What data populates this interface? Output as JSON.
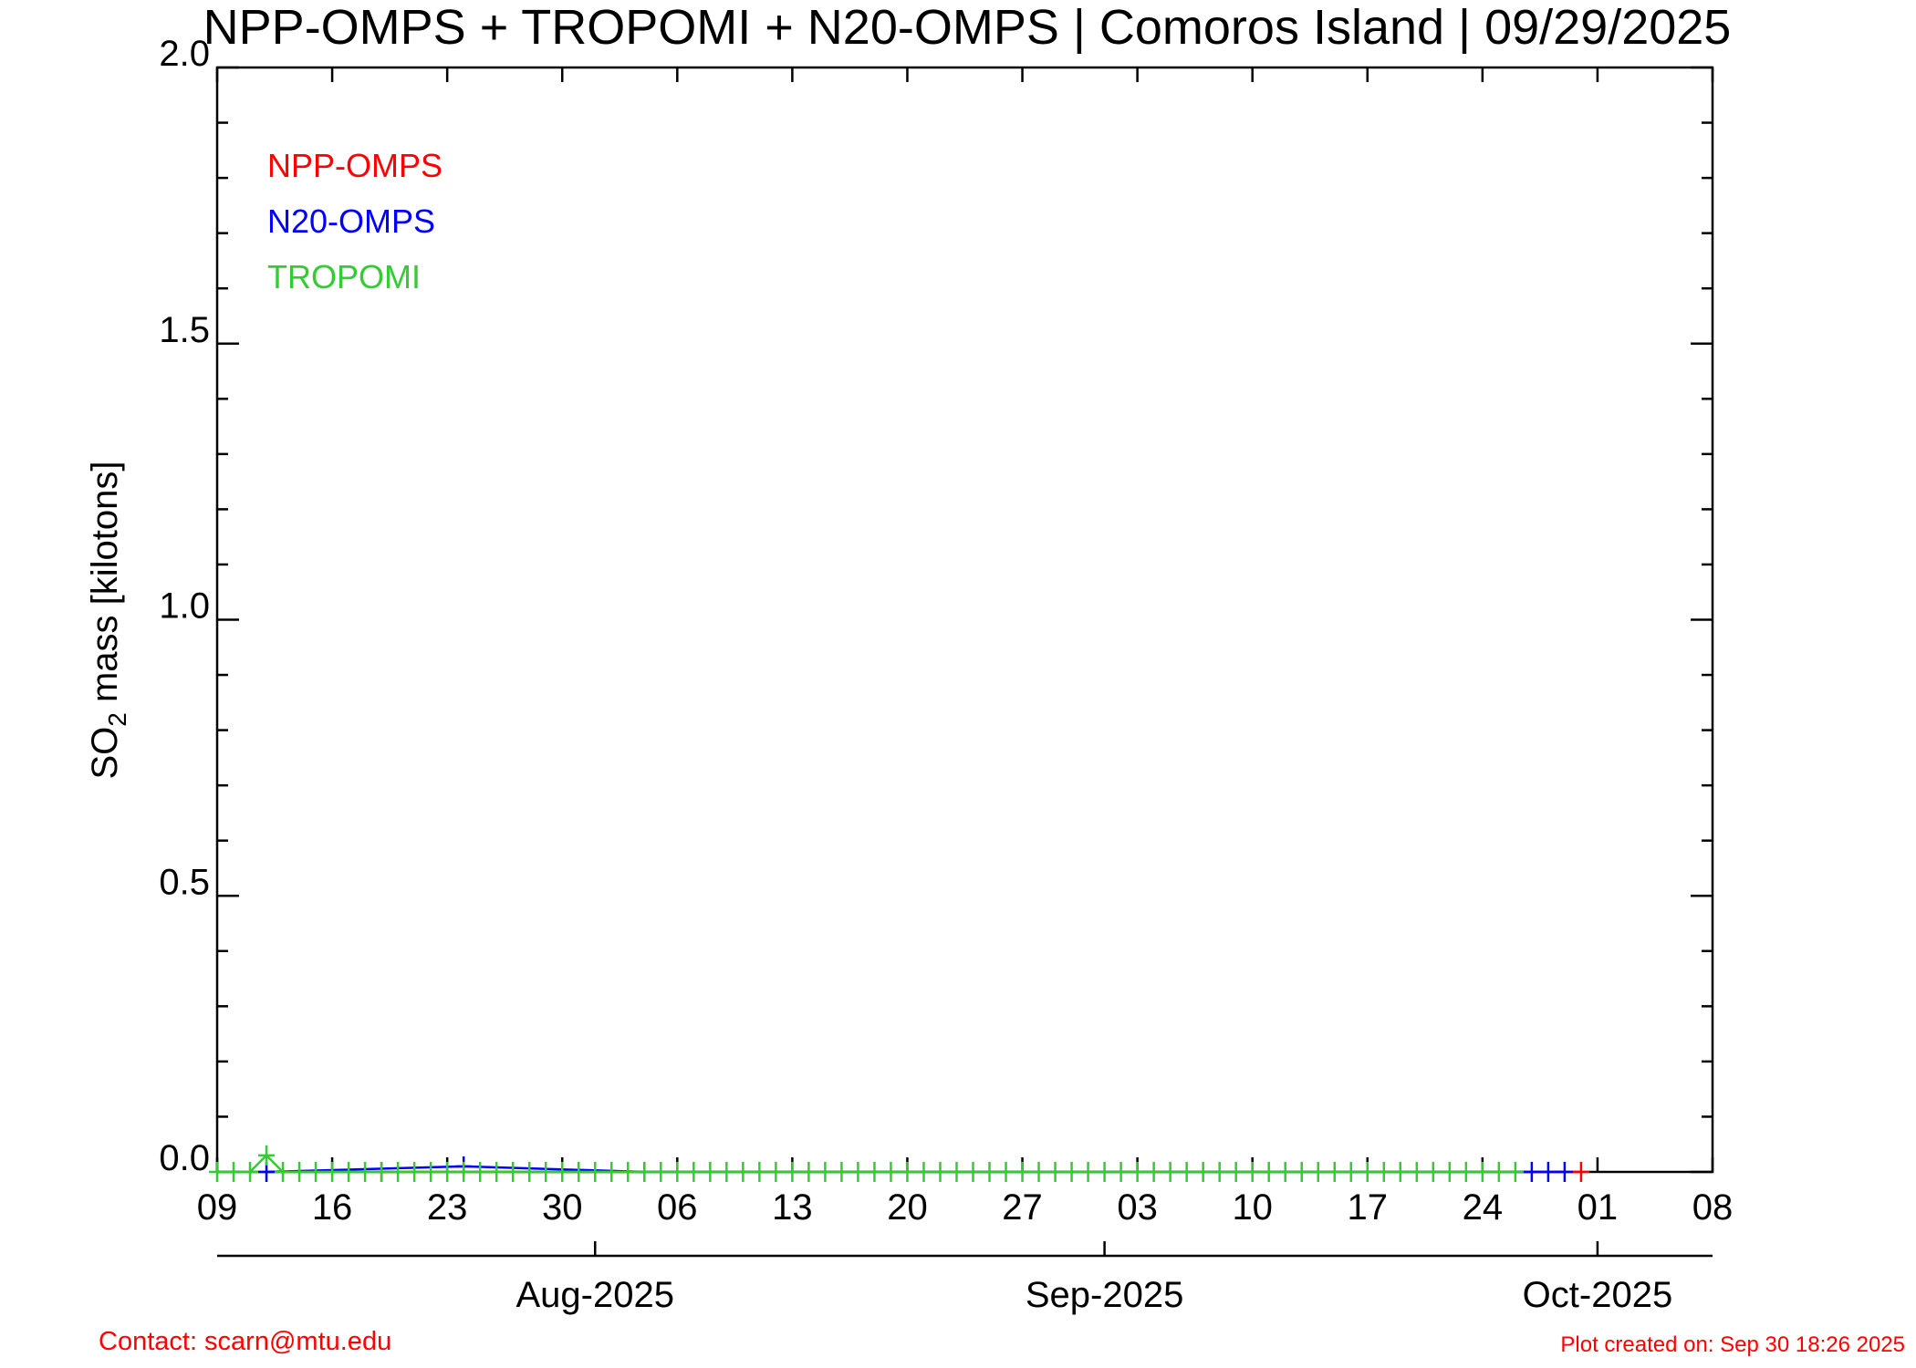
{
  "chart_data": {
    "type": "line",
    "title": "NPP-OMPS + TROPOMI + N20-OMPS | Comoros Island | 09/29/2025",
    "ylabel": [
      "SO",
      "2",
      " mass [kilotons]"
    ],
    "ylim": [
      0,
      2.0
    ],
    "yticks": [
      {
        "value": 0,
        "label": "0.0"
      },
      {
        "value": 0.5,
        "label": "0.5"
      },
      {
        "value": 1.0,
        "label": "1.0"
      },
      {
        "value": 1.5,
        "label": "1.5"
      },
      {
        "value": 2.0,
        "label": "2.0"
      }
    ],
    "yminorticks": [
      0.1,
      0.2,
      0.3,
      0.4,
      0.6,
      0.7,
      0.8,
      0.9,
      1.1,
      1.2,
      1.3,
      1.4,
      1.6,
      1.7,
      1.8,
      1.9
    ],
    "xlim": [
      "2025-07-09",
      "2025-10-08"
    ],
    "xticks": [
      {
        "value": "2025-07-09",
        "label": "09"
      },
      {
        "value": "2025-07-16",
        "label": "16"
      },
      {
        "value": "2025-07-23",
        "label": "23"
      },
      {
        "value": "2025-07-30",
        "label": "30"
      },
      {
        "value": "2025-08-06",
        "label": "06"
      },
      {
        "value": "2025-08-13",
        "label": "13"
      },
      {
        "value": "2025-08-20",
        "label": "20"
      },
      {
        "value": "2025-08-27",
        "label": "27"
      },
      {
        "value": "2025-09-03",
        "label": "03"
      },
      {
        "value": "2025-09-10",
        "label": "10"
      },
      {
        "value": "2025-09-17",
        "label": "17"
      },
      {
        "value": "2025-09-24",
        "label": "24"
      },
      {
        "value": "2025-10-01",
        "label": "01"
      },
      {
        "value": "2025-10-08",
        "label": "08"
      }
    ],
    "monthticks": [
      {
        "value": "2025-08-01",
        "label": "Aug-2025"
      },
      {
        "value": "2025-09-01",
        "label": "Sep-2025"
      },
      {
        "value": "2025-10-01",
        "label": "Oct-2025"
      }
    ],
    "series": [
      {
        "name": "NPP-OMPS",
        "color": "#ff0000",
        "x": [
          "2025-07-19",
          "2025-09-30"
        ],
        "values": [
          0,
          0
        ]
      },
      {
        "name": "N20-OMPS",
        "color": "#0000ff",
        "x": [
          "2025-07-12",
          "2025-07-24",
          "2025-08-04",
          "2025-09-27",
          "2025-09-28",
          "2025-09-29"
        ],
        "values": [
          0,
          0.01,
          0,
          0,
          0,
          0
        ]
      },
      {
        "name": "TROPOMI",
        "color": "#33cc33",
        "x": [
          "2025-07-09",
          "2025-07-10",
          "2025-07-11",
          "2025-07-12",
          "2025-07-13",
          "2025-07-14",
          "2025-07-15",
          "2025-07-16",
          "2025-07-17",
          "2025-07-18",
          "2025-07-19",
          "2025-07-20",
          "2025-07-21",
          "2025-07-22",
          "2025-07-23",
          "2025-07-24",
          "2025-07-25",
          "2025-07-26",
          "2025-07-27",
          "2025-07-28",
          "2025-07-29",
          "2025-07-30",
          "2025-07-31",
          "2025-08-01",
          "2025-08-02",
          "2025-08-03",
          "2025-08-04",
          "2025-08-05",
          "2025-08-06",
          "2025-08-07",
          "2025-08-08",
          "2025-08-09",
          "2025-08-10",
          "2025-08-11",
          "2025-08-12",
          "2025-08-13",
          "2025-08-14",
          "2025-08-15",
          "2025-08-16",
          "2025-08-17",
          "2025-08-18",
          "2025-08-19",
          "2025-08-20",
          "2025-08-21",
          "2025-08-22",
          "2025-08-23",
          "2025-08-24",
          "2025-08-25",
          "2025-08-26",
          "2025-08-27",
          "2025-08-28",
          "2025-08-29",
          "2025-08-30",
          "2025-08-31",
          "2025-09-01",
          "2025-09-02",
          "2025-09-03",
          "2025-09-04",
          "2025-09-05",
          "2025-09-06",
          "2025-09-07",
          "2025-09-08",
          "2025-09-09",
          "2025-09-10",
          "2025-09-11",
          "2025-09-12",
          "2025-09-13",
          "2025-09-14",
          "2025-09-15",
          "2025-09-16",
          "2025-09-17",
          "2025-09-18",
          "2025-09-19",
          "2025-09-20",
          "2025-09-21",
          "2025-09-22",
          "2025-09-23",
          "2025-09-24",
          "2025-09-25",
          "2025-09-26"
        ],
        "values": [
          0,
          0,
          0,
          0.03,
          0,
          0,
          0,
          0,
          0,
          0,
          0,
          0,
          0,
          0,
          0,
          0,
          0,
          0,
          0,
          0,
          0,
          0,
          0,
          0,
          0,
          0,
          0,
          0,
          0,
          0,
          0,
          0,
          0,
          0,
          0,
          0,
          0,
          0,
          0,
          0,
          0,
          0,
          0,
          0,
          0,
          0,
          0,
          0,
          0,
          0,
          0,
          0,
          0,
          0,
          0,
          0,
          0,
          0,
          0,
          0,
          0,
          0,
          0,
          0,
          0,
          0,
          0,
          0,
          0,
          0,
          0,
          0,
          0,
          0,
          0,
          0,
          0,
          0,
          0,
          0
        ]
      }
    ],
    "contact": "Contact: scarn@mtu.edu",
    "created": "Plot created on: Sep 30 18:26 2025"
  }
}
